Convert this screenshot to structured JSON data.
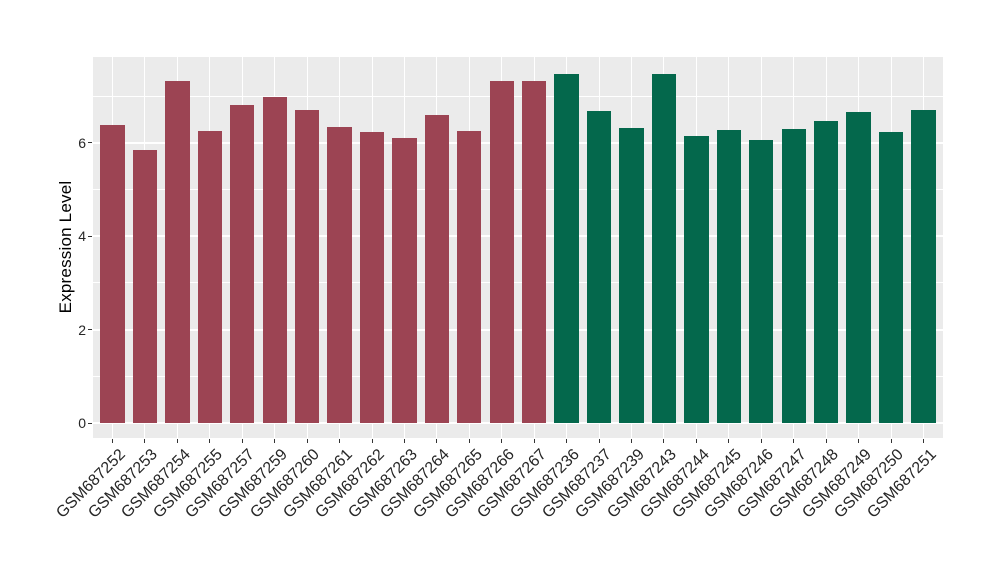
{
  "figure": {
    "background_color": "#ffffff",
    "panel_background_color": "#ebebeb",
    "grid_color": "#ffffff",
    "axis_text_color": "#262626",
    "axis_title_color": "#000000",
    "tick_mark_color": "#333333"
  },
  "chart_data": {
    "type": "bar",
    "title": "",
    "xlabel": "",
    "ylabel": "Expression Level",
    "categories": [
      "GSM687252",
      "GSM687253",
      "GSM687254",
      "GSM687255",
      "GSM687257",
      "GSM687259",
      "GSM687260",
      "GSM687261",
      "GSM687262",
      "GSM687263",
      "GSM687264",
      "GSM687265",
      "GSM687266",
      "GSM687267",
      "GSM687236",
      "GSM687237",
      "GSM687239",
      "GSM687243",
      "GSM687244",
      "GSM687245",
      "GSM687246",
      "GSM687247",
      "GSM687248",
      "GSM687249",
      "GSM687250",
      "GSM687251"
    ],
    "values": [
      6.38,
      5.85,
      7.33,
      6.26,
      6.82,
      6.98,
      6.7,
      6.34,
      6.23,
      6.1,
      6.6,
      6.26,
      7.33,
      7.33,
      7.47,
      6.68,
      6.32,
      7.47,
      6.15,
      6.27,
      6.06,
      6.3,
      6.48,
      6.66,
      6.23,
      6.7
    ],
    "bar_colors": [
      "#9c4453",
      "#9c4453",
      "#9c4453",
      "#9c4453",
      "#9c4453",
      "#9c4453",
      "#9c4453",
      "#9c4453",
      "#9c4453",
      "#9c4453",
      "#9c4453",
      "#9c4453",
      "#9c4453",
      "#9c4453",
      "#04684c",
      "#04684c",
      "#04684c",
      "#04684c",
      "#04684c",
      "#04684c",
      "#04684c",
      "#04684c",
      "#04684c",
      "#04684c",
      "#04684c",
      "#04684c"
    ],
    "group_colors": {
      "left_group": "#9c4453",
      "right_group": "#04684c"
    },
    "yticks_major": [
      0,
      2,
      4,
      6
    ],
    "yticks_minor": [
      1,
      3,
      5,
      7
    ],
    "ylim": [
      -0.32,
      7.84
    ],
    "grid": "on",
    "legend_position": "none",
    "x_tick_rotation_deg": 45,
    "bar_width_fraction": 0.75
  }
}
